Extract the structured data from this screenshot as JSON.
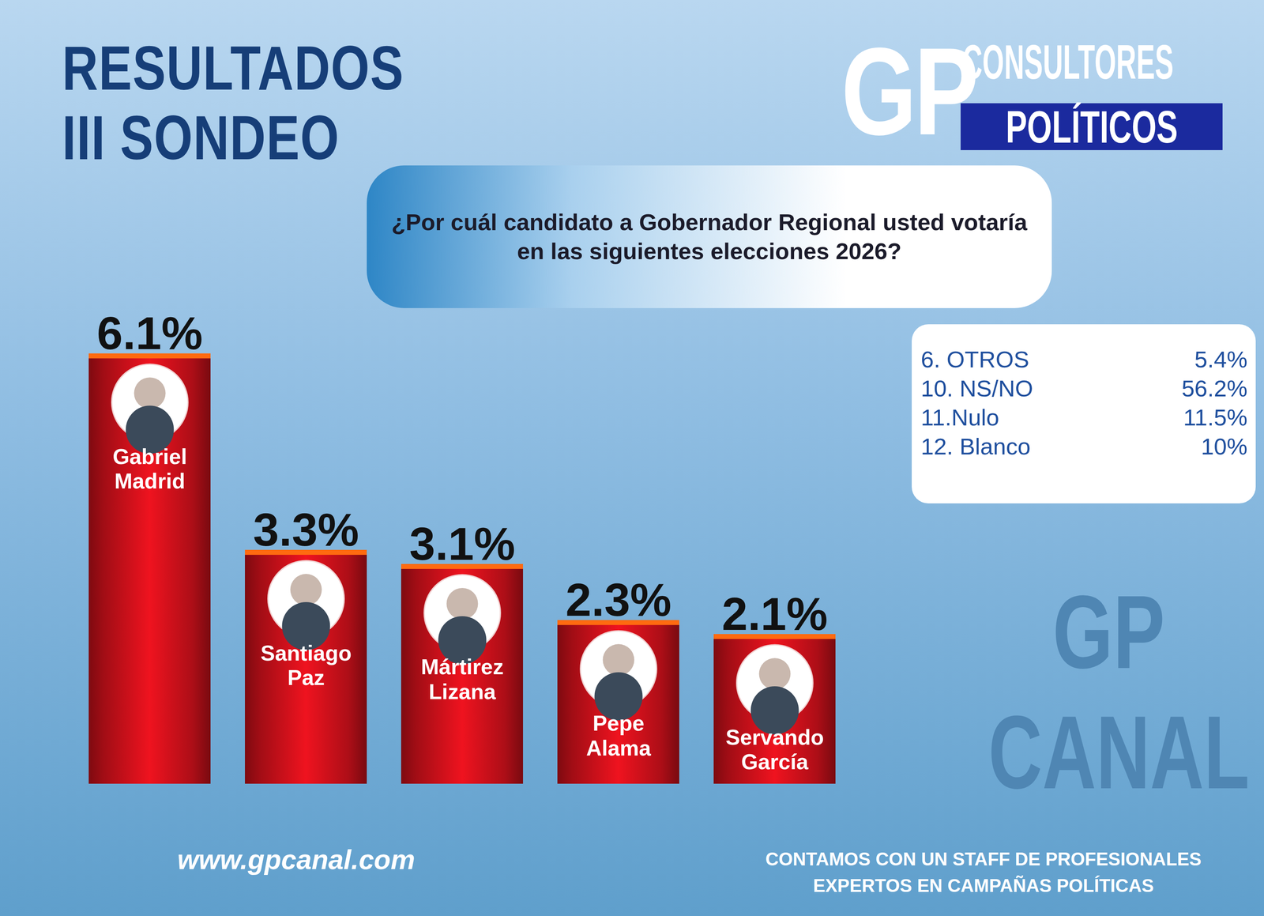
{
  "chart_data": {
    "type": "bar",
    "title": "RESULTADOS\nIII SONDEO",
    "subtitle": "¿Por cuál candidato a Gobernador Regional usted votaría en las siguientes elecciones 2026?",
    "categories": [
      "Gabriel Madrid",
      "Santiago Paz",
      "Mártirez Lizana",
      "Pepe Alama",
      "Servando García"
    ],
    "values": [
      6.1,
      3.3,
      3.1,
      2.3,
      2.1
    ],
    "value_labels": [
      "6.1%",
      "3.3%",
      "3.1%",
      "2.3%",
      "2.1%"
    ],
    "color": "#c8101a",
    "ylim": [
      0,
      6.5
    ],
    "data_labels": true,
    "tick_labels": false
  },
  "logo": {
    "mark": "GP",
    "line1": "CONSULTORES",
    "line2": "POLÍTICOS"
  },
  "others": [
    {
      "label": "6. OTROS",
      "value": "5.4%"
    },
    {
      "label": "10. NS/NO",
      "value": "56.2%"
    },
    {
      "label": "11.Nulo",
      "value": "11.5%"
    },
    {
      "label": "12. Blanco",
      "value": "10%"
    }
  ],
  "watermark": {
    "line1": "GP",
    "line2": "CANAL"
  },
  "footer": {
    "url": "www.gpcanal.com",
    "tagline": [
      "CONTAMOS CON UN STAFF DE PROFESIONALES",
      "EXPERTOS EN CAMPAÑAS POLÍTICAS"
    ]
  }
}
